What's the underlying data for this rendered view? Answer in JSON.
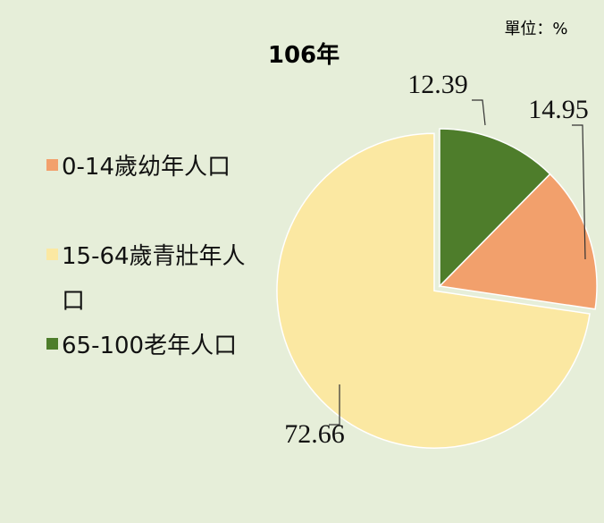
{
  "chart_data": {
    "type": "pie",
    "title": "106年",
    "unit": "單位：%",
    "categories": [
      "0-14歲幼年人口",
      "15-64歲青壯年人口",
      "65-100老年人口"
    ],
    "values": [
      14.95,
      72.66,
      12.39
    ],
    "colors": [
      "#f2a06c",
      "#fbe8a2",
      "#4e7d2b"
    ],
    "legend": "left"
  }
}
